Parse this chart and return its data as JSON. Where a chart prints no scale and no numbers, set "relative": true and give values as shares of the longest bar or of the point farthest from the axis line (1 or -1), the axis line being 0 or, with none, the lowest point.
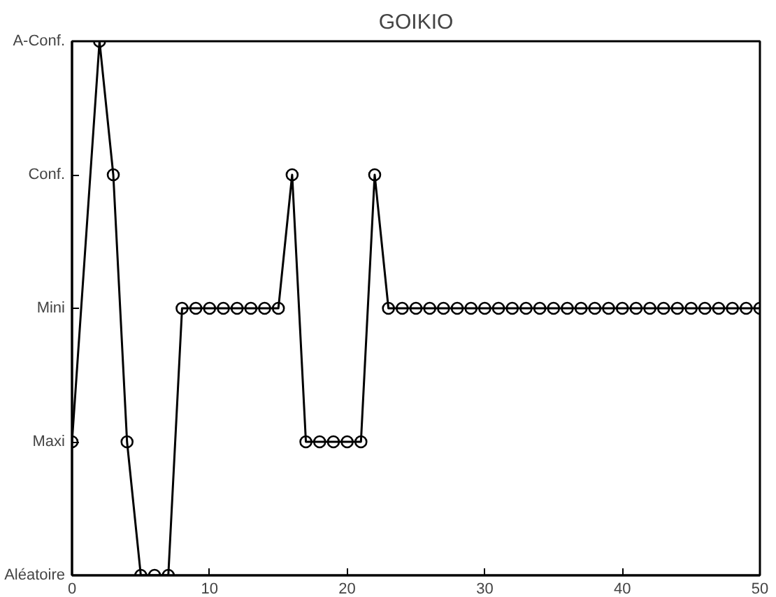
{
  "chart_data": {
    "type": "line",
    "title": "GOIKIO",
    "relative": true,
    "x": [
      0,
      2,
      3,
      4,
      5,
      6,
      7,
      8,
      9,
      10,
      11,
      12,
      13,
      14,
      15,
      16,
      17,
      18,
      19,
      20,
      21,
      22,
      23,
      24,
      25,
      26,
      27,
      28,
      29,
      30,
      31,
      32,
      33,
      34,
      35,
      36,
      37,
      38,
      39,
      40,
      41,
      42,
      43,
      44,
      45,
      46,
      47,
      48,
      49,
      50
    ],
    "series": [
      {
        "color": "#000000",
        "values": [
          0.25,
          1,
          0.75,
          0.25,
          0,
          0,
          0,
          0.5,
          0.5,
          0.5,
          0.5,
          0.5,
          0.5,
          0.5,
          0.5,
          0.75,
          0.25,
          0.25,
          0.25,
          0.25,
          0.25,
          0.75,
          0.5,
          0.5,
          0.5,
          0.5,
          0.5,
          0.5,
          0.5,
          0.5,
          0.5,
          0.5,
          0.5,
          0.5,
          0.5,
          0.5,
          0.5,
          0.5,
          0.5,
          0.5,
          0.5,
          0.5,
          0.5,
          0.5,
          0.5,
          0.5,
          0.5,
          0.5,
          0.5,
          0.5
        ]
      }
    ],
    "xlim": [
      0,
      50
    ],
    "xticks": [
      0,
      10,
      20,
      30,
      40,
      50
    ],
    "annotations": [
      "Aléatoire",
      "Maxi",
      "Mini",
      "Conf.",
      "A-Conf."
    ],
    "grid": false,
    "marker": "circle",
    "line_style": "solid"
  }
}
